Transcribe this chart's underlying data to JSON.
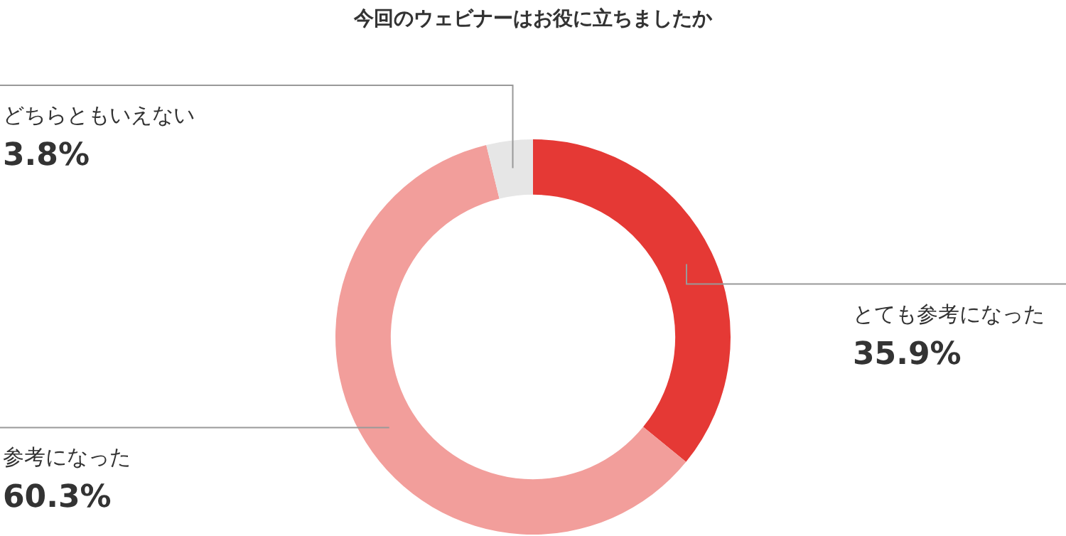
{
  "chart_data": {
    "type": "donut",
    "title": "今回のウェビナーはお役に立ちましたか",
    "categories": [
      "とても参考になった",
      "参考になった",
      "どちらともいえない"
    ],
    "values": [
      35.9,
      60.3,
      3.8
    ],
    "value_labels": [
      "35.9%",
      "60.3%",
      "3.8%"
    ],
    "colors": [
      "#e53935",
      "#f29e9b",
      "#e6e6e6"
    ],
    "legend": false
  }
}
